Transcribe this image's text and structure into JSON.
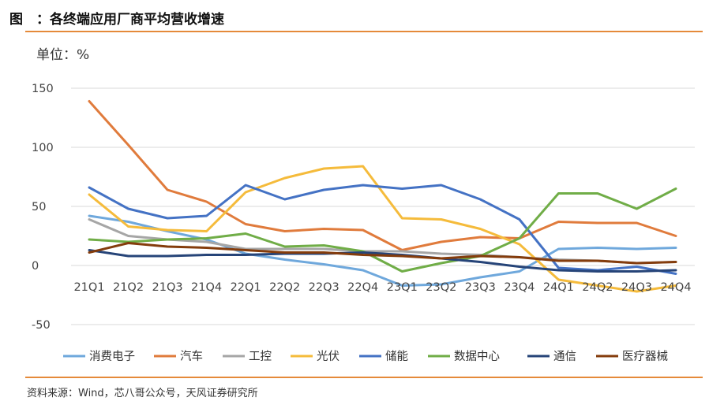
{
  "header": {
    "title": "图　：各终端应用厂商平均营收增速"
  },
  "footer": {
    "source": "资料来源：Wind，芯八哥公众号，天风证券研究所"
  },
  "chart_data": {
    "type": "line",
    "unit_label": "单位：%",
    "categories": [
      "21Q1",
      "21Q2",
      "21Q3",
      "21Q4",
      "22Q1",
      "22Q2",
      "22Q3",
      "22Q4",
      "23Q1",
      "23Q2",
      "23Q3",
      "23Q4",
      "24Q1",
      "24Q2",
      "24Q3",
      "24Q4"
    ],
    "ylim": [
      -50,
      150
    ],
    "yticks": [
      150,
      100,
      50,
      0,
      -50
    ],
    "grid": true,
    "legend_position": "bottom",
    "series": [
      {
        "name": "消费电子",
        "color": "#6fa8dc",
        "values": [
          42,
          37,
          29,
          22,
          10,
          5,
          1,
          -4,
          -17,
          -16,
          -10,
          -5,
          14,
          15,
          14,
          15
        ]
      },
      {
        "name": "汽车",
        "color": "#e07b3c",
        "values": [
          139,
          102,
          64,
          54,
          35,
          29,
          31,
          30,
          13,
          20,
          24,
          23,
          37,
          36,
          36,
          25
        ]
      },
      {
        "name": "工控",
        "color": "#a6a6a6",
        "values": [
          39,
          25,
          22,
          20,
          14,
          14,
          14,
          12,
          12,
          10,
          9,
          7,
          5,
          4,
          2,
          3
        ]
      },
      {
        "name": "光伏",
        "color": "#f5bb3b",
        "values": [
          60,
          33,
          30,
          29,
          62,
          74,
          82,
          84,
          40,
          39,
          31,
          18,
          -12,
          -17,
          -22,
          -17
        ]
      },
      {
        "name": "储能",
        "color": "#4472c4",
        "values": [
          66,
          48,
          40,
          42,
          68,
          56,
          64,
          68,
          65,
          68,
          56,
          39,
          -2,
          -4,
          -1,
          -7
        ]
      },
      {
        "name": "数据中心",
        "color": "#70ad47",
        "values": [
          22,
          20,
          22,
          23,
          27,
          16,
          17,
          12,
          -5,
          2,
          8,
          23,
          61,
          61,
          48,
          65
        ]
      },
      {
        "name": "通信",
        "color": "#264478",
        "values": [
          13,
          8,
          8,
          9,
          9,
          10,
          10,
          11,
          9,
          6,
          3,
          -1,
          -4,
          -5,
          -5,
          -4
        ]
      },
      {
        "name": "医疗器械",
        "color": "#843c0c",
        "values": [
          11,
          19,
          16,
          15,
          13,
          11,
          11,
          9,
          8,
          6,
          8,
          7,
          4,
          4,
          2,
          3
        ]
      }
    ]
  }
}
